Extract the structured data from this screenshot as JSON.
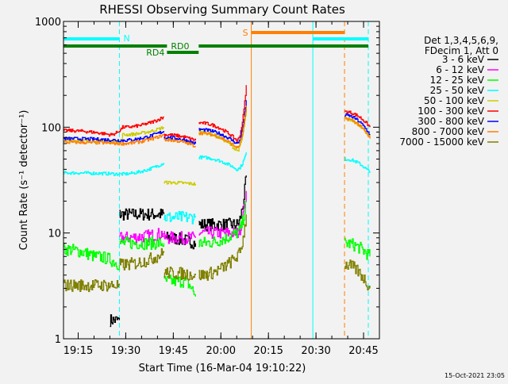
{
  "chart_data": {
    "type": "line",
    "title": "RHESSI Observing Summary Count Rates",
    "xlabel": "Start Time (16-Mar-04 19:10:22)",
    "ylabel": "Count Rate (s⁻¹ detector⁻¹)",
    "yscale": "log",
    "ylim": [
      1,
      1000
    ],
    "xlim": [
      "19:10:22",
      "20:50"
    ],
    "yticks": [
      "1",
      "10",
      "100",
      "1000"
    ],
    "xticks": [
      "19:15",
      "19:30",
      "19:45",
      "20:00",
      "20:15",
      "20:30",
      "20:45"
    ],
    "legend_header": [
      "Det 1,3,4,5,6,9,",
      "FDecim 1, Att 0"
    ],
    "legend_position": "right",
    "footer": "15-Oct-2021 23:05",
    "flags": [
      {
        "label": "N",
        "color": "#00ffff",
        "ranges": [
          [
            "19:10:22",
            "19:28"
          ],
          [
            "20:29",
            "20:46.5"
          ]
        ]
      },
      {
        "label": "S",
        "color": "#ff8000",
        "ranges": [
          [
            "20:09.6",
            "20:39"
          ]
        ]
      },
      {
        "label": "RD0",
        "color": "#008000",
        "ranges": [
          [
            "19:10:22",
            "19:43"
          ],
          [
            "19:53",
            "20:46.5"
          ]
        ]
      },
      {
        "label": "RD4",
        "color": "#008000",
        "ranges": [
          [
            "19:43",
            "19:53"
          ]
        ]
      }
    ],
    "vlines": [
      {
        "time": "19:10:22",
        "color": "#00ffff",
        "style": "solid"
      },
      {
        "time": "19:28",
        "color": "#00ffff",
        "style": "dashed"
      },
      {
        "time": "20:09.6",
        "color": "#ff8000",
        "style": "solid"
      },
      {
        "time": "20:29",
        "color": "#00ffff",
        "style": "solid"
      },
      {
        "time": "20:39",
        "color": "#ff8000",
        "style": "dashed"
      },
      {
        "time": "20:46.5",
        "color": "#00ffff",
        "style": "dashed"
      }
    ],
    "series": [
      {
        "name": "3 - 6 keV",
        "color": "#000000",
        "segments": [
          [
            [
              "19:25",
              1.5
            ],
            [
              "19:28",
              1.5
            ]
          ],
          [
            [
              "19:28",
              15
            ],
            [
              "19:42",
              15
            ]
          ],
          [
            [
              "19:42",
              9
            ],
            [
              "19:52",
              8
            ]
          ],
          [
            [
              "19:53",
              12
            ],
            [
              "20:05",
              12
            ],
            [
              "20:08",
              35
            ]
          ]
        ]
      },
      {
        "name": "6 - 12 keV",
        "color": "#ff00ff",
        "segments": [
          [
            [
              "19:28",
              9
            ],
            [
              "19:42",
              10
            ]
          ],
          [
            [
              "19:42",
              9
            ],
            [
              "19:52",
              9
            ]
          ],
          [
            [
              "19:53",
              10
            ],
            [
              "20:05",
              10
            ],
            [
              "20:08",
              25
            ]
          ]
        ]
      },
      {
        "name": "12 - 25 keV",
        "color": "#00ff00",
        "segments": [
          [
            [
              "19:10:22",
              7
            ],
            [
              "19:20",
              6
            ],
            [
              "19:28",
              5
            ]
          ],
          [
            [
              "19:28",
              8
            ],
            [
              "19:42",
              8
            ]
          ],
          [
            [
              "19:42",
              3.5
            ],
            [
              "19:48",
              3.5
            ],
            [
              "19:52",
              2.5
            ]
          ],
          [
            [
              "19:53",
              8
            ],
            [
              "20:05",
              10
            ],
            [
              "20:08",
              20
            ]
          ],
          [
            [
              "20:39",
              8
            ],
            [
              "20:47",
              6
            ]
          ]
        ]
      },
      {
        "name": "25 - 50 keV",
        "color": "#00ffff",
        "segments": [
          [
            [
              "19:10:22",
              37
            ],
            [
              "19:28",
              36
            ],
            [
              "19:42",
              46
            ]
          ],
          [
            [
              "19:42",
              14
            ],
            [
              "19:52",
              14
            ]
          ],
          [
            [
              "19:53",
              52
            ],
            [
              "20:05",
              40
            ],
            [
              "20:08",
              58
            ]
          ],
          [
            [
              "20:39",
              50
            ],
            [
              "20:47",
              37
            ]
          ]
        ]
      },
      {
        "name": "50 - 100 keV",
        "color": "#cccc00",
        "segments": [
          [
            [
              "19:10:22",
              75
            ],
            [
              "19:28",
              72
            ],
            [
              "19:29",
              85
            ],
            [
              "19:42",
              100
            ]
          ],
          [
            [
              "19:42",
              30
            ],
            [
              "19:52",
              29
            ]
          ],
          [
            [
              "19:53",
              90
            ],
            [
              "20:05",
              60
            ],
            [
              "20:08",
              150
            ]
          ],
          [
            [
              "20:39",
              120
            ],
            [
              "20:47",
              80
            ]
          ]
        ]
      },
      {
        "name": "100 - 300 keV",
        "color": "#ff0000",
        "segments": [
          [
            [
              "19:10:22",
              93
            ],
            [
              "19:25",
              85
            ],
            [
              "19:29",
              100
            ],
            [
              "19:42",
              125
            ]
          ],
          [
            [
              "19:42",
              85
            ],
            [
              "19:52",
              75
            ]
          ],
          [
            [
              "19:53",
              110
            ],
            [
              "20:05",
              75
            ],
            [
              "20:08",
              250
            ]
          ],
          [
            [
              "20:39",
              140
            ],
            [
              "20:47",
              100
            ]
          ]
        ]
      },
      {
        "name": "300 - 800 keV",
        "color": "#0000ff",
        "segments": [
          [
            [
              "19:10:22",
              78
            ],
            [
              "19:28",
              75
            ],
            [
              "19:42",
              92
            ]
          ],
          [
            [
              "19:42",
              80
            ],
            [
              "19:52",
              70
            ]
          ],
          [
            [
              "19:53",
              95
            ],
            [
              "20:05",
              70
            ],
            [
              "20:08",
              180
            ]
          ],
          [
            [
              "20:39",
              130
            ],
            [
              "20:47",
              85
            ]
          ]
        ]
      },
      {
        "name": "800 - 7000 keV",
        "color": "#ff8000",
        "segments": [
          [
            [
              "19:10:22",
              72
            ],
            [
              "19:28",
              70
            ],
            [
              "19:42",
              85
            ]
          ],
          [
            [
              "19:42",
              76
            ],
            [
              "19:52",
              66
            ]
          ],
          [
            [
              "19:53",
              88
            ],
            [
              "20:05",
              64
            ],
            [
              "20:08",
              160
            ]
          ],
          [
            [
              "20:39",
              120
            ],
            [
              "20:47",
              78
            ]
          ]
        ]
      },
      {
        "name": "7000 - 15000 keV",
        "color": "#808000",
        "segments": [
          [
            [
              "19:10:22",
              3.2
            ],
            [
              "19:28",
              3.2
            ]
          ],
          [
            [
              "19:28",
              5
            ],
            [
              "19:42",
              6.5
            ]
          ],
          [
            [
              "19:42",
              4.2
            ],
            [
              "19:52",
              4
            ]
          ],
          [
            [
              "19:53",
              4
            ],
            [
              "20:05",
              6
            ],
            [
              "20:08",
              15
            ]
          ],
          [
            [
              "20:39",
              5
            ],
            [
              "20:47",
              3
            ]
          ]
        ]
      }
    ]
  }
}
